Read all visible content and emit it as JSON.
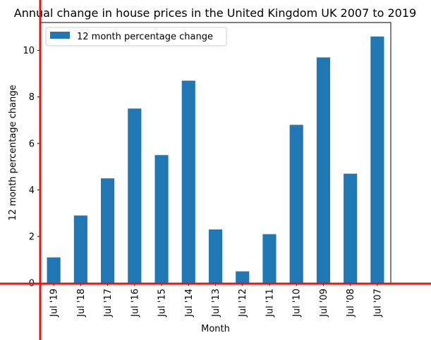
{
  "chart_data": {
    "type": "bar",
    "title": "Annual change in house prices in the United Kingdom UK 2007 to 2019",
    "xlabel": "Month",
    "ylabel": "12 month percentage change",
    "categories": [
      "Jul '19",
      "Jul '18",
      "Jul '17",
      "Jul '16",
      "Jul '15",
      "Jul '14",
      "Jul '13",
      "Jul '12",
      "Jul '11",
      "Jul '10",
      "Jul '09",
      "Jul '08",
      "Jul '07"
    ],
    "series": [
      {
        "name": "12 month percentage change",
        "color": "#1f77b4",
        "values": [
          1.1,
          2.9,
          4.5,
          7.5,
          5.5,
          8.7,
          2.3,
          0.5,
          2.1,
          6.8,
          9.7,
          4.7,
          10.6
        ]
      }
    ],
    "ylim": [
      0,
      11.2
    ],
    "yticks": [
      0,
      2,
      4,
      6,
      8,
      10
    ],
    "grid": false,
    "legend_position": "top-left",
    "overlay_color": "#e81313"
  }
}
